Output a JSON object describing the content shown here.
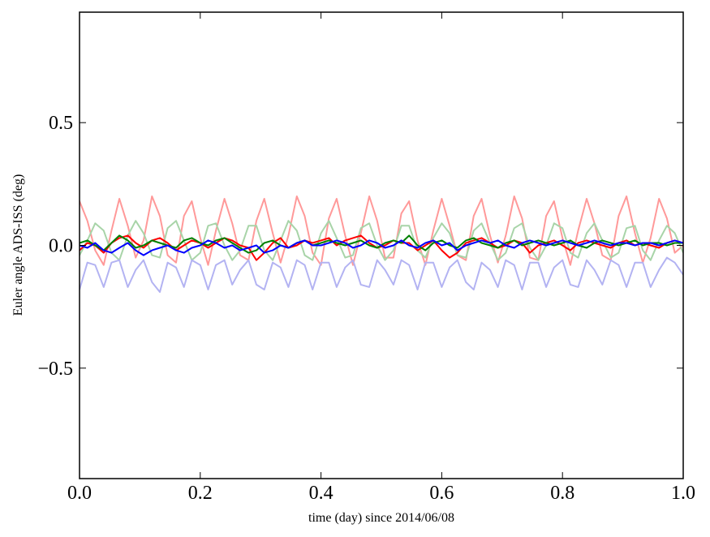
{
  "chart_data": {
    "type": "line",
    "xlabel": "time (day) since 2014/06/08",
    "ylabel": "Euler angle ADS-ISS (deg)",
    "xlim": [
      0.0,
      1.0
    ],
    "ylim": [
      -0.95,
      0.95
    ],
    "xticks": [
      "0.0",
      "0.2",
      "0.4",
      "0.6",
      "0.8",
      "1.0"
    ],
    "yticks": [
      "0.5",
      "0.0",
      "−0.5"
    ],
    "xtick_values": [
      0.0,
      0.2,
      0.4,
      0.6,
      0.8,
      1.0
    ],
    "ytick_values": [
      0.5,
      0.0,
      -0.5
    ],
    "grid": false,
    "series": [
      {
        "color": "#ff9999",
        "opacity": 1,
        "x": [
          0.0,
          0.013,
          0.026,
          0.04,
          0.053,
          0.066,
          0.08,
          0.093,
          0.106,
          0.12,
          0.133,
          0.146,
          0.16,
          0.173,
          0.186,
          0.2,
          0.213,
          0.226,
          0.24,
          0.253,
          0.266,
          0.28,
          0.293,
          0.306,
          0.32,
          0.333,
          0.346,
          0.36,
          0.373,
          0.386,
          0.4,
          0.413,
          0.426,
          0.44,
          0.453,
          0.466,
          0.48,
          0.493,
          0.506,
          0.52,
          0.533,
          0.546,
          0.56,
          0.573,
          0.586,
          0.6,
          0.613,
          0.626,
          0.64,
          0.653,
          0.666,
          0.68,
          0.693,
          0.706,
          0.72,
          0.733,
          0.746,
          0.76,
          0.773,
          0.786,
          0.8,
          0.813,
          0.826,
          0.84,
          0.853,
          0.866,
          0.88,
          0.893,
          0.906,
          0.92,
          0.933,
          0.946,
          0.96,
          0.973,
          0.986,
          1.0
        ],
        "y": [
          0.18,
          0.1,
          -0.02,
          -0.08,
          0.06,
          0.19,
          0.08,
          -0.05,
          0.02,
          0.2,
          0.12,
          -0.04,
          -0.07,
          0.12,
          0.18,
          0.03,
          -0.08,
          0.06,
          0.19,
          0.09,
          -0.04,
          -0.06,
          0.1,
          0.19,
          0.05,
          -0.07,
          0.04,
          0.2,
          0.12,
          -0.03,
          -0.08,
          0.11,
          0.19,
          0.04,
          -0.08,
          0.05,
          0.2,
          0.1,
          -0.05,
          -0.05,
          0.13,
          0.18,
          0.02,
          -0.08,
          0.06,
          0.19,
          0.08,
          -0.04,
          -0.06,
          0.12,
          0.19,
          0.04,
          -0.07,
          0.04,
          0.2,
          0.11,
          -0.05,
          -0.06,
          0.12,
          0.18,
          0.03,
          -0.08,
          0.06,
          0.19,
          0.09,
          -0.04,
          -0.06,
          0.12,
          0.2,
          0.05,
          -0.07,
          0.03,
          0.19,
          0.11,
          -0.03,
          0.0
        ]
      },
      {
        "color": "#a8d4a8",
        "opacity": 1,
        "x": [
          0.0,
          0.013,
          0.026,
          0.04,
          0.053,
          0.066,
          0.08,
          0.093,
          0.106,
          0.12,
          0.133,
          0.146,
          0.16,
          0.173,
          0.186,
          0.2,
          0.213,
          0.226,
          0.24,
          0.253,
          0.266,
          0.28,
          0.293,
          0.306,
          0.32,
          0.333,
          0.346,
          0.36,
          0.373,
          0.386,
          0.4,
          0.413,
          0.426,
          0.44,
          0.453,
          0.466,
          0.48,
          0.493,
          0.506,
          0.52,
          0.533,
          0.546,
          0.56,
          0.573,
          0.586,
          0.6,
          0.613,
          0.626,
          0.64,
          0.653,
          0.666,
          0.68,
          0.693,
          0.706,
          0.72,
          0.733,
          0.746,
          0.76,
          0.773,
          0.786,
          0.8,
          0.813,
          0.826,
          0.84,
          0.853,
          0.866,
          0.88,
          0.893,
          0.906,
          0.92,
          0.933,
          0.946,
          0.96,
          0.973,
          0.986,
          1.0
        ],
        "y": [
          -0.04,
          0.02,
          0.09,
          0.06,
          -0.03,
          -0.06,
          0.04,
          0.1,
          0.05,
          -0.04,
          -0.05,
          0.07,
          0.1,
          0.02,
          -0.06,
          -0.03,
          0.08,
          0.09,
          0.0,
          -0.06,
          -0.02,
          0.08,
          0.08,
          -0.02,
          -0.06,
          0.02,
          0.1,
          0.06,
          -0.04,
          -0.06,
          0.05,
          0.1,
          0.03,
          -0.05,
          -0.04,
          0.07,
          0.09,
          0.0,
          -0.06,
          -0.02,
          0.08,
          0.08,
          -0.02,
          -0.05,
          0.03,
          0.09,
          0.05,
          -0.04,
          -0.05,
          0.06,
          0.09,
          0.01,
          -0.06,
          -0.03,
          0.07,
          0.09,
          -0.01,
          -0.06,
          0.0,
          0.09,
          0.07,
          -0.03,
          -0.05,
          0.05,
          0.09,
          0.02,
          -0.05,
          -0.03,
          0.07,
          0.08,
          -0.02,
          -0.06,
          0.02,
          0.08,
          0.05,
          -0.03
        ]
      },
      {
        "color": "#b3b3f2",
        "opacity": 1,
        "x": [
          0.0,
          0.013,
          0.026,
          0.04,
          0.053,
          0.066,
          0.08,
          0.093,
          0.106,
          0.12,
          0.133,
          0.146,
          0.16,
          0.173,
          0.186,
          0.2,
          0.213,
          0.226,
          0.24,
          0.253,
          0.266,
          0.28,
          0.293,
          0.306,
          0.32,
          0.333,
          0.346,
          0.36,
          0.373,
          0.386,
          0.4,
          0.413,
          0.426,
          0.44,
          0.453,
          0.466,
          0.48,
          0.493,
          0.506,
          0.52,
          0.533,
          0.546,
          0.56,
          0.573,
          0.586,
          0.6,
          0.613,
          0.626,
          0.64,
          0.653,
          0.666,
          0.68,
          0.693,
          0.706,
          0.72,
          0.733,
          0.746,
          0.76,
          0.773,
          0.786,
          0.8,
          0.813,
          0.826,
          0.84,
          0.853,
          0.866,
          0.88,
          0.893,
          0.906,
          0.92,
          0.933,
          0.946,
          0.96,
          0.973,
          0.986,
          1.0
        ],
        "y": [
          -0.18,
          -0.07,
          -0.08,
          -0.17,
          -0.07,
          -0.06,
          -0.17,
          -0.1,
          -0.06,
          -0.15,
          -0.19,
          -0.07,
          -0.09,
          -0.17,
          -0.06,
          -0.08,
          -0.18,
          -0.08,
          -0.06,
          -0.16,
          -0.1,
          -0.06,
          -0.16,
          -0.18,
          -0.07,
          -0.09,
          -0.17,
          -0.06,
          -0.08,
          -0.18,
          -0.07,
          -0.07,
          -0.17,
          -0.09,
          -0.06,
          -0.16,
          -0.17,
          -0.06,
          -0.1,
          -0.16,
          -0.06,
          -0.08,
          -0.18,
          -0.07,
          -0.07,
          -0.17,
          -0.09,
          -0.06,
          -0.15,
          -0.18,
          -0.07,
          -0.1,
          -0.17,
          -0.06,
          -0.08,
          -0.18,
          -0.07,
          -0.07,
          -0.17,
          -0.09,
          -0.06,
          -0.16,
          -0.17,
          -0.06,
          -0.1,
          -0.16,
          -0.06,
          -0.08,
          -0.17,
          -0.07,
          -0.07,
          -0.17,
          -0.1,
          -0.05,
          -0.07,
          -0.12
        ]
      },
      {
        "color": "#ff0000",
        "opacity": 1,
        "x": [
          0.0,
          0.013,
          0.026,
          0.04,
          0.053,
          0.066,
          0.08,
          0.093,
          0.106,
          0.12,
          0.133,
          0.146,
          0.16,
          0.173,
          0.186,
          0.2,
          0.213,
          0.226,
          0.24,
          0.253,
          0.266,
          0.28,
          0.293,
          0.306,
          0.32,
          0.333,
          0.346,
          0.36,
          0.373,
          0.386,
          0.4,
          0.413,
          0.426,
          0.44,
          0.453,
          0.466,
          0.48,
          0.493,
          0.506,
          0.52,
          0.533,
          0.546,
          0.56,
          0.573,
          0.586,
          0.6,
          0.613,
          0.626,
          0.64,
          0.653,
          0.666,
          0.68,
          0.693,
          0.706,
          0.72,
          0.733,
          0.746,
          0.76,
          0.773,
          0.786,
          0.8,
          0.813,
          0.826,
          0.84,
          0.853,
          0.866,
          0.88,
          0.893,
          0.906,
          0.92,
          0.933,
          0.946,
          0.96,
          0.973,
          0.986,
          1.0
        ],
        "y": [
          -0.02,
          0.01,
          0.0,
          -0.03,
          0.01,
          0.03,
          0.04,
          0.01,
          -0.01,
          0.02,
          0.03,
          0.01,
          -0.02,
          0.0,
          0.02,
          0.01,
          -0.01,
          0.01,
          0.03,
          0.02,
          0.0,
          -0.01,
          -0.06,
          -0.03,
          0.01,
          0.03,
          -0.01,
          0.0,
          0.02,
          0.01,
          0.02,
          0.03,
          0.0,
          0.02,
          0.03,
          0.04,
          0.01,
          -0.01,
          0.0,
          0.02,
          0.01,
          0.01,
          -0.02,
          0.0,
          0.02,
          -0.02,
          -0.05,
          -0.03,
          0.01,
          0.02,
          0.03,
          0.01,
          -0.01,
          0.0,
          0.02,
          0.01,
          -0.03,
          0.0,
          0.01,
          0.02,
          0.0,
          -0.02,
          0.01,
          0.02,
          0.01,
          0.0,
          -0.01,
          0.01,
          0.02,
          0.0,
          0.01,
          0.0,
          -0.01,
          0.01,
          0.02,
          0.01
        ]
      },
      {
        "color": "#008000",
        "opacity": 1,
        "x": [
          0.0,
          0.013,
          0.026,
          0.04,
          0.053,
          0.066,
          0.08,
          0.093,
          0.106,
          0.12,
          0.133,
          0.146,
          0.16,
          0.173,
          0.186,
          0.2,
          0.213,
          0.226,
          0.24,
          0.253,
          0.266,
          0.28,
          0.293,
          0.306,
          0.32,
          0.333,
          0.346,
          0.36,
          0.373,
          0.386,
          0.4,
          0.413,
          0.426,
          0.44,
          0.453,
          0.466,
          0.48,
          0.493,
          0.506,
          0.52,
          0.533,
          0.546,
          0.56,
          0.573,
          0.586,
          0.6,
          0.613,
          0.626,
          0.64,
          0.653,
          0.666,
          0.68,
          0.693,
          0.706,
          0.72,
          0.733,
          0.746,
          0.76,
          0.773,
          0.786,
          0.8,
          0.813,
          0.826,
          0.84,
          0.853,
          0.866,
          0.88,
          0.893,
          0.906,
          0.92,
          0.933,
          0.946,
          0.96,
          0.973,
          0.986,
          1.0
        ],
        "y": [
          0.01,
          0.02,
          0.0,
          -0.02,
          0.01,
          0.04,
          0.02,
          -0.01,
          0.0,
          0.02,
          0.01,
          0.0,
          -0.01,
          0.02,
          0.03,
          0.01,
          0.0,
          0.02,
          0.03,
          0.01,
          -0.01,
          -0.03,
          -0.02,
          0.01,
          0.02,
          0.0,
          -0.01,
          0.01,
          0.02,
          0.0,
          0.01,
          0.02,
          0.01,
          0.0,
          0.01,
          0.02,
          0.0,
          -0.01,
          0.01,
          0.02,
          0.01,
          0.04,
          0.0,
          -0.02,
          0.01,
          0.02,
          0.0,
          -0.01,
          0.02,
          0.03,
          0.01,
          0.0,
          -0.01,
          0.01,
          0.02,
          0.0,
          0.01,
          0.02,
          0.01,
          0.0,
          0.01,
          0.02,
          0.0,
          -0.01,
          0.01,
          0.02,
          0.01,
          0.0,
          0.01,
          0.02,
          0.0,
          0.01,
          0.01,
          0.0,
          0.01,
          0.01
        ]
      },
      {
        "color": "#0000ff",
        "opacity": 1,
        "x": [
          0.0,
          0.013,
          0.026,
          0.04,
          0.053,
          0.066,
          0.08,
          0.093,
          0.106,
          0.12,
          0.133,
          0.146,
          0.16,
          0.173,
          0.186,
          0.2,
          0.213,
          0.226,
          0.24,
          0.253,
          0.266,
          0.28,
          0.293,
          0.306,
          0.32,
          0.333,
          0.346,
          0.36,
          0.373,
          0.386,
          0.4,
          0.413,
          0.426,
          0.44,
          0.453,
          0.466,
          0.48,
          0.493,
          0.506,
          0.52,
          0.533,
          0.546,
          0.56,
          0.573,
          0.586,
          0.6,
          0.613,
          0.626,
          0.64,
          0.653,
          0.666,
          0.68,
          0.693,
          0.706,
          0.72,
          0.733,
          0.746,
          0.76,
          0.773,
          0.786,
          0.8,
          0.813,
          0.826,
          0.84,
          0.853,
          0.866,
          0.88,
          0.893,
          0.906,
          0.92,
          0.933,
          0.946,
          0.96,
          0.973,
          0.986,
          1.0
        ],
        "y": [
          0.0,
          -0.01,
          0.01,
          -0.02,
          -0.03,
          -0.01,
          0.01,
          -0.02,
          -0.04,
          -0.02,
          -0.01,
          0.0,
          -0.02,
          -0.03,
          -0.01,
          0.0,
          0.02,
          0.01,
          -0.01,
          0.0,
          -0.02,
          -0.01,
          0.0,
          -0.03,
          -0.02,
          0.0,
          -0.01,
          0.01,
          0.02,
          0.0,
          0.0,
          0.01,
          0.02,
          0.01,
          -0.01,
          0.0,
          0.02,
          0.01,
          -0.01,
          0.0,
          0.02,
          0.0,
          -0.01,
          0.01,
          0.02,
          0.0,
          0.01,
          -0.02,
          0.0,
          0.01,
          0.02,
          0.01,
          0.02,
          0.0,
          -0.01,
          0.01,
          0.02,
          0.01,
          0.0,
          0.01,
          0.02,
          0.01,
          0.0,
          0.01,
          0.02,
          0.01,
          0.0,
          0.01,
          0.01,
          0.0,
          0.01,
          0.01,
          0.0,
          0.01,
          0.02,
          0.01
        ]
      }
    ]
  }
}
